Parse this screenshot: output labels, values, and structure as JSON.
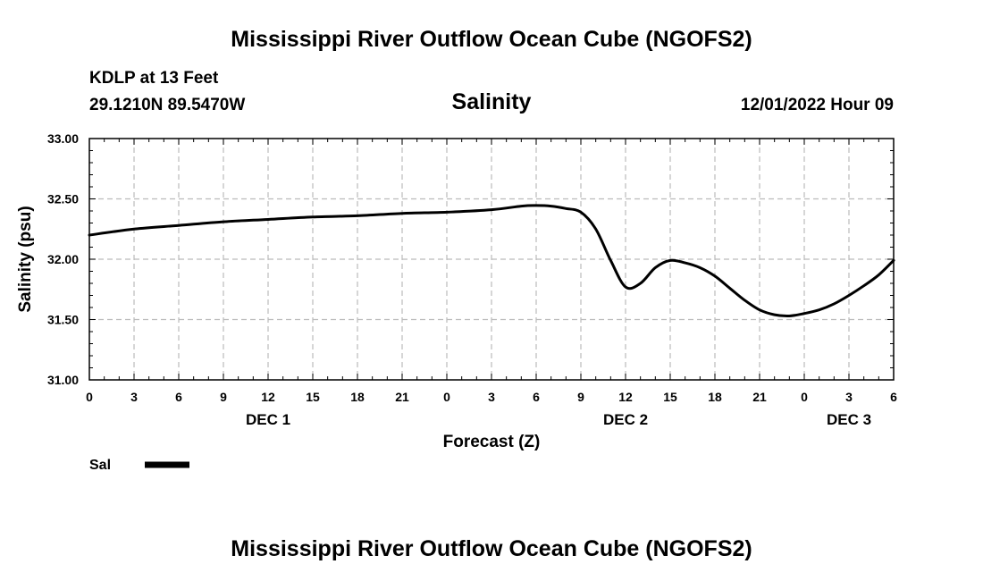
{
  "header": {
    "title": "Mississippi River Outflow Ocean Cube (NGOFS2)",
    "station": "KDLP at 13 Feet",
    "coords": "29.1210N  89.5470W",
    "datetime": "12/01/2022 Hour 09"
  },
  "footer": {
    "title": "Mississippi River Outflow Ocean Cube (NGOFS2)"
  },
  "colors": {
    "line": "#000000",
    "grid": "#bbbbbb",
    "background": "#ffffff"
  },
  "chart_data": {
    "type": "line",
    "title": "Salinity",
    "xlabel": "Forecast (Z)",
    "ylabel": "Salinity (psu)",
    "xlim": [
      0,
      54
    ],
    "ylim": [
      31.0,
      33.0
    ],
    "grid": true,
    "x_tick_values": [
      0,
      3,
      6,
      9,
      12,
      15,
      18,
      21,
      24,
      27,
      30,
      33,
      36,
      39,
      42,
      45,
      48,
      51,
      54
    ],
    "x_tick_labels": [
      "0",
      "3",
      "6",
      "9",
      "12",
      "15",
      "18",
      "21",
      "0",
      "3",
      "6",
      "9",
      "12",
      "15",
      "18",
      "21",
      "0",
      "3",
      "6"
    ],
    "y_tick_values": [
      31.0,
      31.5,
      32.0,
      32.5,
      33.0
    ],
    "y_tick_labels": [
      "31.00",
      "31.50",
      "32.00",
      "32.50",
      "33.00"
    ],
    "date_labels": [
      {
        "x": 12,
        "label": "DEC 1"
      },
      {
        "x": 36,
        "label": "DEC 2"
      },
      {
        "x": 51,
        "label": "DEC 3"
      }
    ],
    "legend": [
      {
        "name": "Sal",
        "position": "bottom-left"
      }
    ],
    "series": [
      {
        "name": "Sal",
        "x": [
          0,
          3,
          6,
          9,
          12,
          15,
          18,
          21,
          24,
          27,
          29,
          30,
          31,
          32,
          33,
          34,
          35,
          36,
          37,
          38,
          39,
          40,
          41,
          42,
          43,
          44,
          45,
          46,
          47,
          48,
          49,
          50,
          51,
          52,
          53,
          54
        ],
        "values": [
          32.2,
          32.25,
          32.28,
          32.31,
          32.33,
          32.35,
          32.36,
          32.38,
          32.39,
          32.41,
          32.44,
          32.445,
          32.44,
          32.42,
          32.39,
          32.25,
          31.99,
          31.77,
          31.8,
          31.93,
          31.99,
          31.97,
          31.93,
          31.86,
          31.76,
          31.66,
          31.58,
          31.54,
          31.53,
          31.55,
          31.58,
          31.63,
          31.7,
          31.78,
          31.87,
          31.99
        ]
      }
    ]
  }
}
